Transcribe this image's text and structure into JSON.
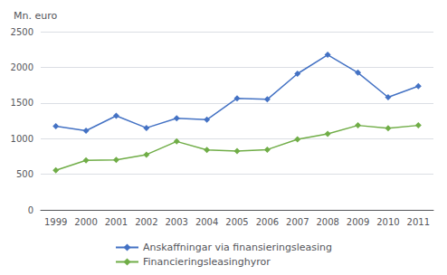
{
  "chart_data": {
    "type": "line",
    "ylabel": "Mn. euro",
    "categories": [
      "1999",
      "2000",
      "2001",
      "2002",
      "2003",
      "2004",
      "2005",
      "2006",
      "2007",
      "2008",
      "2009",
      "2010",
      "2011"
    ],
    "series": [
      {
        "name": "Anskaffningar via finansieringsleasing",
        "color": "#4472C4",
        "marker": "diamond",
        "values": [
          1175,
          1110,
          1320,
          1150,
          1285,
          1265,
          1565,
          1550,
          1910,
          2175,
          1925,
          1580,
          1735
        ]
      },
      {
        "name": "Financieringsleasinghyror",
        "color": "#70AD47",
        "marker": "diamond",
        "values": [
          555,
          695,
          700,
          775,
          960,
          840,
          825,
          845,
          990,
          1065,
          1185,
          1145,
          1185
        ]
      }
    ],
    "ylim": [
      0,
      2500
    ],
    "yticks": [
      0,
      500,
      1000,
      1500,
      2000,
      2500
    ],
    "grid": true,
    "legend": "bottom"
  }
}
